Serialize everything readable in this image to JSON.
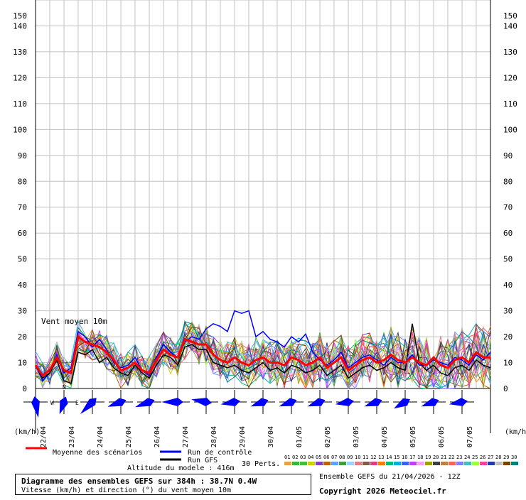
{
  "chart_data": {
    "type": "line",
    "title": "Diagramme des ensembles GEFS sur 384h : 38.7N 0.4W",
    "subtitle": "Vitesse (km/h) et direction (°) du vent moyen 10m",
    "panel_label": "Vent moyen 10m",
    "ylabel_left": "(km/h)",
    "ylabel_right": "(km/h)",
    "ylim": [
      0,
      150
    ],
    "yticks": [
      0,
      10,
      20,
      30,
      40,
      50,
      60,
      70,
      80,
      90,
      100,
      110,
      120,
      130,
      140,
      150
    ],
    "xlim_hours": [
      0,
      384
    ],
    "step_hours": 6,
    "date_labels": [
      {
        "label": "22/04",
        "hour": 6
      },
      {
        "label": "23/04",
        "hour": 30
      },
      {
        "label": "24/04",
        "hour": 54
      },
      {
        "label": "25/04",
        "hour": 78
      },
      {
        "label": "26/04",
        "hour": 102
      },
      {
        "label": "27/04",
        "hour": 126
      },
      {
        "label": "28/04",
        "hour": 150
      },
      {
        "label": "29/04",
        "hour": 174
      },
      {
        "label": "30/04",
        "hour": 198
      },
      {
        "label": "01/05",
        "hour": 222
      },
      {
        "label": "02/05",
        "hour": 246
      },
      {
        "label": "03/05",
        "hour": 270
      },
      {
        "label": "04/05",
        "hour": 294
      },
      {
        "label": "05/05",
        "hour": 318
      },
      {
        "label": "06/05",
        "hour": 342
      },
      {
        "label": "07/05",
        "hour": 366
      }
    ],
    "series": [
      {
        "name": "Moyenne des scénarios",
        "color": "#ff0000",
        "values": [
          9,
          5,
          7,
          12,
          7,
          6,
          20,
          18,
          17,
          16,
          14,
          11,
          7,
          8,
          10,
          7,
          6,
          11,
          15,
          13,
          12,
          19,
          18,
          17,
          17,
          13,
          11,
          10,
          12,
          10,
          9,
          11,
          12,
          10,
          10,
          9,
          12,
          11,
          9,
          10,
          12,
          8,
          10,
          12,
          7,
          9,
          11,
          12,
          10,
          11,
          13,
          11,
          10,
          12,
          10,
          9,
          12,
          9,
          8,
          11,
          12,
          10,
          14,
          12,
          12
        ]
      },
      {
        "name": "Run de contrôle",
        "color": "#0000ff",
        "values": [
          9,
          3,
          6,
          13,
          6,
          8,
          22,
          20,
          16,
          19,
          15,
          10,
          8,
          9,
          12,
          7,
          5,
          12,
          17,
          14,
          12,
          18,
          20,
          19,
          23,
          25,
          24,
          22,
          30,
          29,
          30,
          20,
          22,
          19,
          18,
          16,
          20,
          18,
          21,
          14,
          11,
          9,
          11,
          14,
          8,
          10,
          12,
          13,
          11,
          9,
          12,
          10,
          10,
          13,
          9,
          9,
          11,
          10,
          9,
          12,
          11,
          9,
          13,
          11,
          14
        ]
      },
      {
        "name": "Run GFS",
        "color": "#000000",
        "values": [
          9,
          4,
          6,
          11,
          3,
          2,
          14,
          13,
          15,
          10,
          12,
          8,
          6,
          5,
          9,
          6,
          4,
          9,
          13,
          12,
          9,
          16,
          17,
          15,
          15,
          10,
          9,
          8,
          9,
          7,
          6,
          8,
          10,
          7,
          8,
          6,
          9,
          8,
          6,
          7,
          9,
          5,
          7,
          9,
          4,
          6,
          8,
          9,
          7,
          8,
          10,
          8,
          7,
          25,
          10,
          7,
          9,
          6,
          5,
          8,
          9,
          7,
          11,
          9,
          8
        ]
      }
    ],
    "perturbation_count": 30,
    "perturbation_colors": [
      "#e8a040",
      "#38b838",
      "#40c040",
      "#d0d000",
      "#8040c0",
      "#c06000",
      "#60a0ff",
      "#40a040",
      "#a0d0ff",
      "#e08080",
      "#806040",
      "#e04080",
      "#ff8000",
      "#00c080",
      "#00b0e0",
      "#4060ff",
      "#c040ff",
      "#ffa0ff",
      "#a0a000",
      "#404040",
      "#c08040",
      "#ff6060",
      "#8080ff",
      "#40c0c0",
      "#a0ff40",
      "#ff40a0",
      "#2040a0",
      "#c0c0c0",
      "#804000",
      "#008080"
    ],
    "wind_directions_deg": [
      170,
      200,
      225,
      250,
      250,
      270,
      280,
      260,
      250,
      250,
      250,
      260,
      250,
      240,
      250,
      260
    ],
    "wind_strength": [
      0.9,
      0.6,
      1.0,
      0.7,
      0.8,
      0.9,
      0.8,
      0.7,
      0.6,
      0.6,
      0.6,
      0.6,
      0.6,
      0.6,
      0.6,
      0.6
    ]
  },
  "legend": {
    "mean": "Moyenne des scénarios",
    "control": "Run de contrôle",
    "gfs": "Run GFS",
    "perts_label": "30 Perts.",
    "perts_numbers": [
      "01",
      "02",
      "03",
      "04",
      "05",
      "06",
      "07",
      "08",
      "09",
      "10",
      "11",
      "12",
      "13",
      "14",
      "15",
      "16",
      "17",
      "18",
      "19",
      "20",
      "21",
      "22",
      "23",
      "24",
      "25",
      "26",
      "27",
      "28",
      "29",
      "30"
    ]
  },
  "footer": {
    "altitude": "Altitude du modele : 416m",
    "box_title": "Diagramme des ensembles GEFS sur 384h : 38.7N 0.4W",
    "box_subtitle": "Vitesse (km/h) et direction (°) du vent moyen 10m",
    "run_info": "Ensemble GEFS du 21/04/2026 - 12Z",
    "copyright": "Copyright 2026 Meteociel.fr"
  },
  "compass": {
    "n": "N",
    "w": "W",
    "e": "E"
  },
  "colors": {
    "mean": "#ff0000",
    "control": "#0000ff",
    "gfs": "#000000",
    "rose": "#0000ff",
    "grid": "#c0c0c0"
  }
}
